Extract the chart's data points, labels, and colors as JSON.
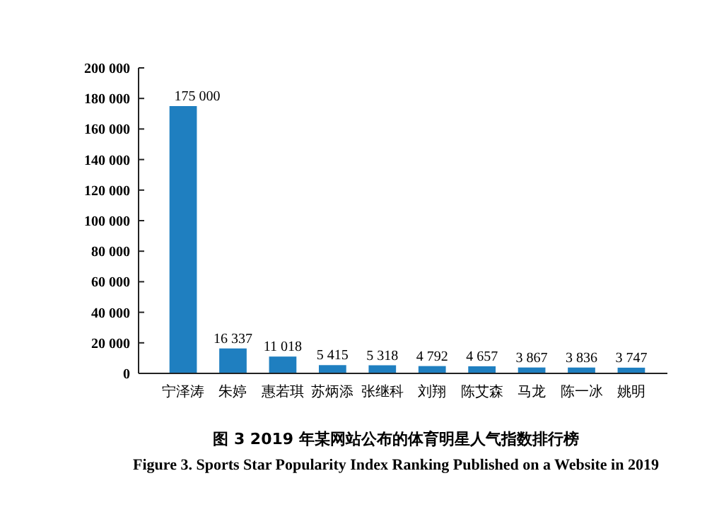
{
  "chart_data": {
    "type": "bar",
    "title": "图 3  2019 年某网站公布的体育明星人气指数排行榜",
    "subtitle": "Figure 3.  Sports Star Popularity Index Ranking Published on a Website in 2019",
    "categories": [
      "宁泽涛",
      "朱婷",
      "惠若琪",
      "苏炳添",
      "张继科",
      "刘翔",
      "陈艾森",
      "马龙",
      "陈一冰",
      "姚明"
    ],
    "values": [
      175000,
      16337,
      11018,
      5415,
      5318,
      4792,
      4657,
      3867,
      3836,
      3747
    ],
    "value_labels": [
      "175 000",
      "16 337",
      "11 018",
      "5 415",
      "5 318",
      "4 792",
      "4 657",
      "3 867",
      "3 836",
      "3 747"
    ],
    "color": "#1f7fc0",
    "ylim": [
      0,
      200000
    ],
    "yticks": [
      0,
      {
        "value": 20000,
        "label": "20 000"
      },
      {
        "value": 40000,
        "label": "40 000"
      },
      {
        "value": 60000,
        "label": "60 000"
      },
      {
        "value": 80000,
        "label": "80 000"
      },
      {
        "value": 100000,
        "label": "100 000"
      },
      {
        "value": 120000,
        "label": "120 000"
      },
      {
        "value": 140000,
        "label": "140 000"
      },
      {
        "value": 160000,
        "label": "160 000"
      },
      {
        "value": 180000,
        "label": "180 000"
      },
      {
        "value": 200000,
        "label": "200 000"
      }
    ],
    "grid": false
  }
}
